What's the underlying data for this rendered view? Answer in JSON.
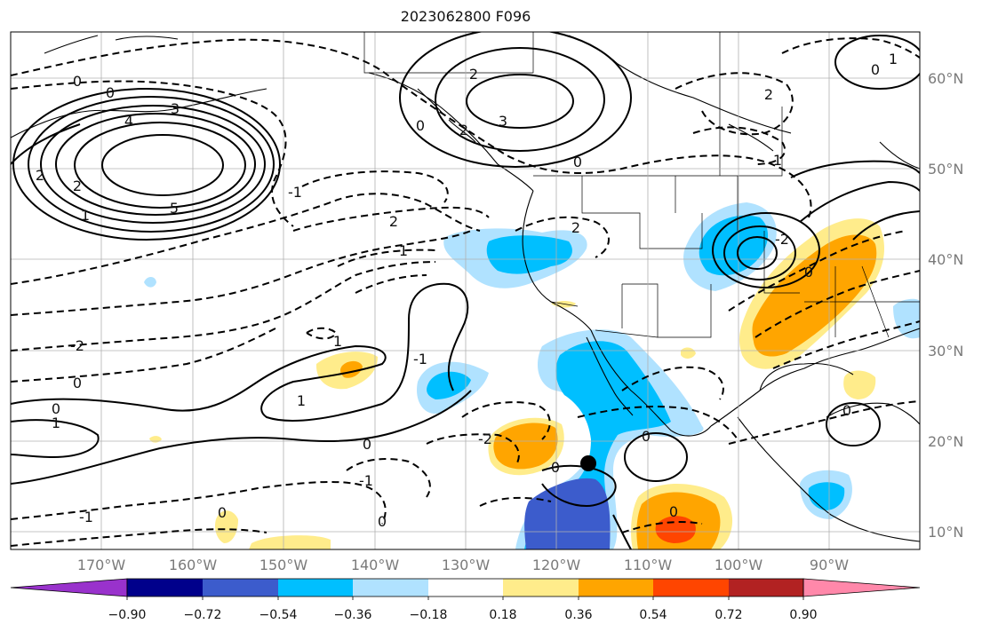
{
  "title": "2023062800 F096",
  "map": {
    "lon_range": [
      -178,
      -78
    ],
    "lat_range": [
      8,
      65
    ],
    "grid": true,
    "lon_ticks": [
      "170°W",
      "160°W",
      "150°W",
      "140°W",
      "130°W",
      "120°W",
      "110°W",
      "100°W",
      "90°W"
    ],
    "lat_ticks": [
      "60°N",
      "50°N",
      "40°N",
      "30°N",
      "20°N",
      "10°N"
    ],
    "lat_tick_position": "right",
    "contour_labels": [
      "0",
      "0",
      "3",
      "4",
      "2",
      "2",
      "5",
      "1",
      "2",
      "2",
      "3",
      "0",
      "0",
      "2",
      "1",
      "-1",
      "2",
      "0",
      "1",
      "1",
      "2",
      "-2",
      "1",
      "0",
      "0",
      "1",
      "1",
      "-1",
      "0",
      "-1",
      "-1",
      "-2",
      "0",
      "-2",
      "0",
      "0",
      "0",
      "0",
      "0",
      "0"
    ],
    "marker": "black-dot",
    "colors": {
      "contour": "#000000",
      "grid": "#b0b0b0",
      "land_border": "#000000"
    }
  },
  "colorbar": {
    "tick_labels": [
      "−0.90",
      "−0.72",
      "−0.54",
      "−0.36",
      "−0.18",
      "0.18",
      "0.36",
      "0.54",
      "0.72",
      "0.90"
    ],
    "colors": [
      "#9932cc",
      "#00008b",
      "#3c5ccc",
      "#00bfff",
      "#b0e2ff",
      "#ffffff",
      "#ffec8b",
      "#ffa500",
      "#ff4500",
      "#b22222",
      "#ff88aa"
    ],
    "extend": "both"
  }
}
